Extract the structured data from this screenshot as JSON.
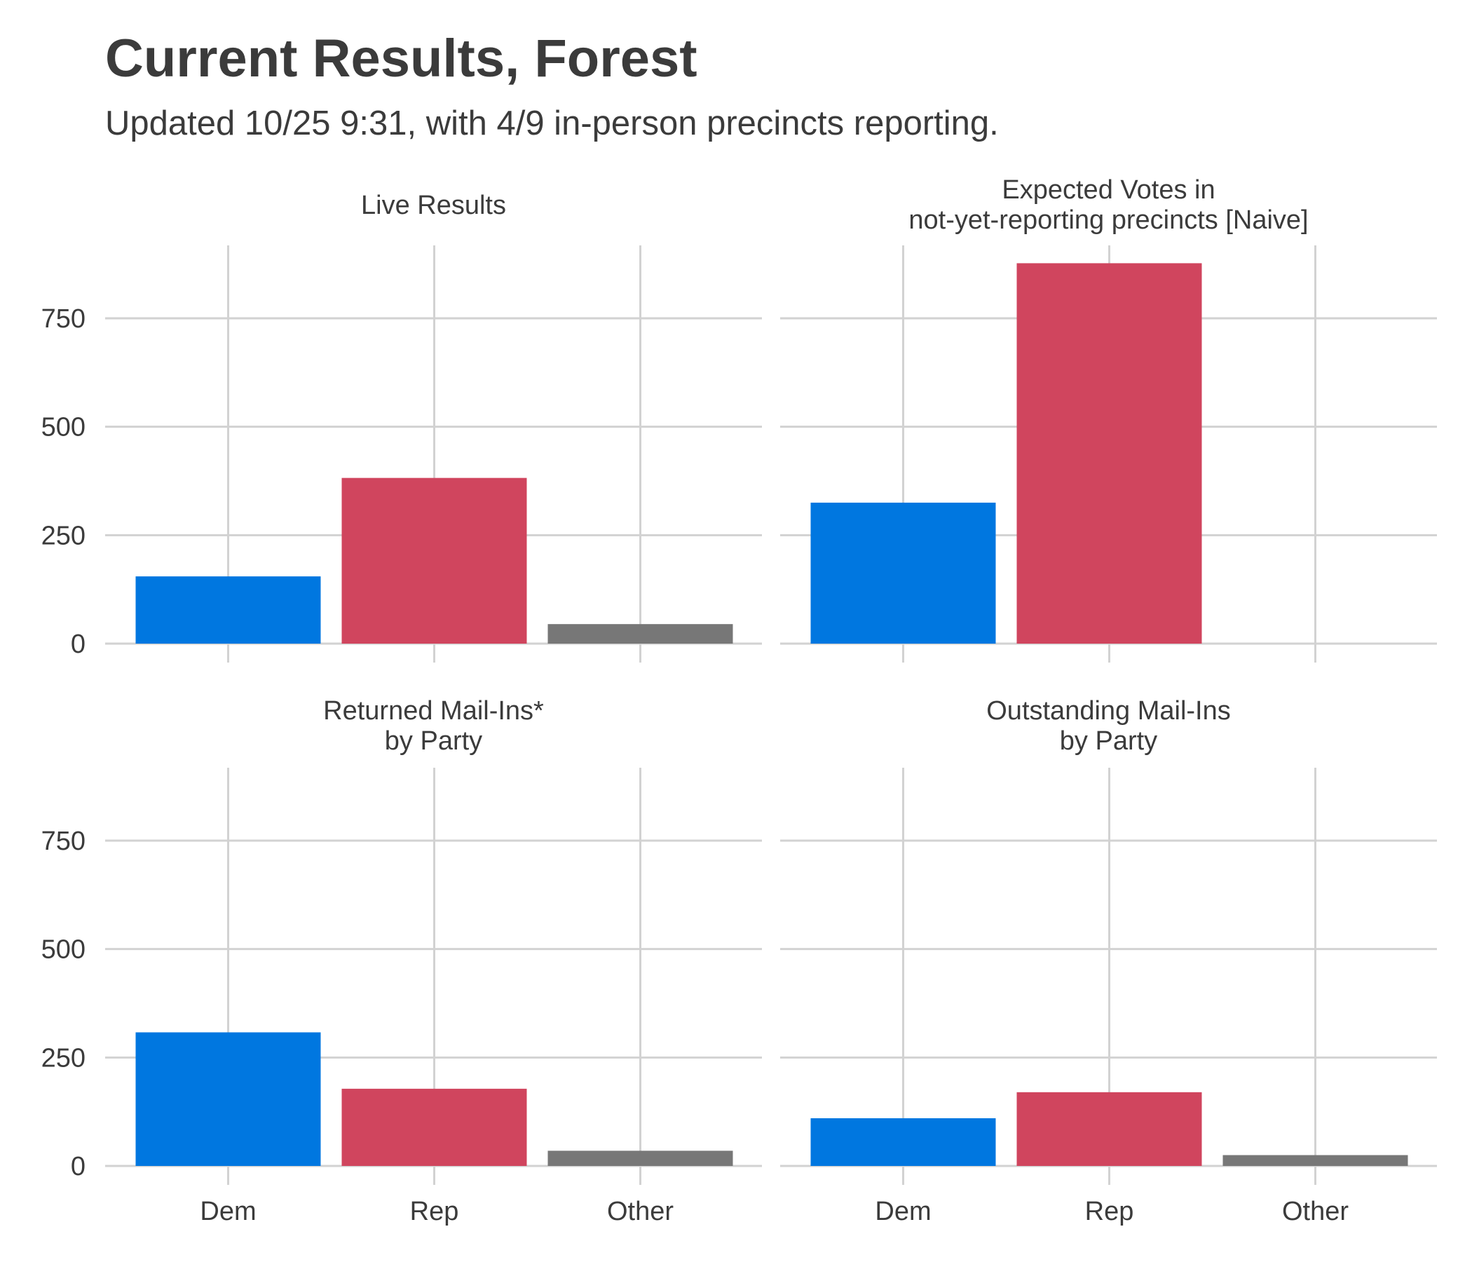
{
  "header": {
    "title": "Current Results, Forest",
    "subtitle": "Updated 10/25 9:31, with 4/9 in-person precincts reporting."
  },
  "colors": {
    "Dem": "#0077E0",
    "Rep": "#D0455E",
    "Other": "#777777",
    "grid": "#D2D2D2",
    "text": "#3B3B3B"
  },
  "chart_data": {
    "type": "bar",
    "layout": "facet-grid-2x2",
    "categories": [
      "Dem",
      "Rep",
      "Other"
    ],
    "y_ticks": [
      "0",
      "250",
      "500",
      "750"
    ],
    "ylim": [
      -20,
      920
    ],
    "grid": true,
    "legend": "none",
    "panels": [
      {
        "title": [
          "Live Results"
        ],
        "values": [
          155,
          382,
          45
        ]
      },
      {
        "title": [
          "Expected Votes in",
          "not-yet-reporting precincts [Naive]"
        ],
        "values": [
          325,
          877,
          0
        ]
      },
      {
        "title": [
          "Returned Mail-Ins*",
          "by Party"
        ],
        "values": [
          308,
          178,
          35
        ]
      },
      {
        "title": [
          "Outstanding Mail-Ins",
          "by Party"
        ],
        "values": [
          110,
          170,
          25
        ]
      }
    ]
  }
}
